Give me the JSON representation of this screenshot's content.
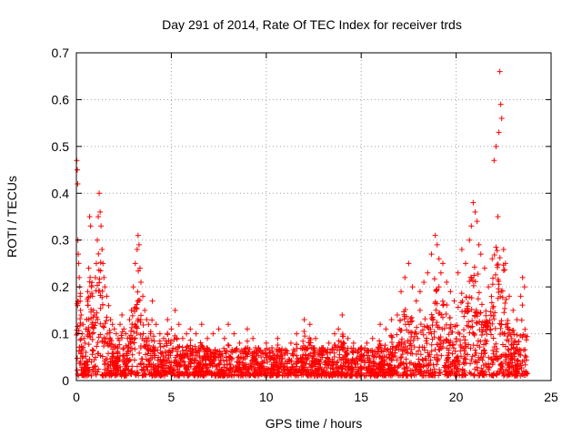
{
  "chart_data": {
    "type": "scatter",
    "title": "Day 291 of 2014, Rate Of TEC Index for receiver trds",
    "xlabel": "GPS time / hours",
    "ylabel": "ROTI / TECUs",
    "xlim": [
      0,
      25
    ],
    "ylim": [
      0,
      0.7
    ],
    "xticks": [
      0,
      5,
      10,
      15,
      20,
      25
    ],
    "yticks": [
      0,
      0.1,
      0.2,
      0.3,
      0.4,
      0.5,
      0.6,
      0.7
    ],
    "xtick_labels": [
      "0",
      "5",
      "10",
      "15",
      "20",
      "25"
    ],
    "ytick_labels": [
      "0",
      "0.1",
      "0.2",
      "0.3",
      "0.4",
      "0.5",
      "0.6",
      "0.7"
    ],
    "grid": true,
    "marker": "+",
    "color": "#ff0000",
    "series": [
      {
        "name": "ROTI",
        "x": [
          0.02,
          0.05,
          0.07,
          0.08,
          0.1,
          0.12,
          0.15,
          0.18,
          0.2,
          0.22,
          0.25,
          0.3,
          0.35,
          0.4,
          0.45,
          0.5,
          0.55,
          0.6,
          0.65,
          0.7,
          0.75,
          0.8,
          0.85,
          0.9,
          0.95,
          1.0,
          1.05,
          1.1,
          1.15,
          1.2,
          1.25,
          1.3,
          1.35,
          1.4,
          1.45,
          1.5,
          1.6,
          1.7,
          1.8,
          1.9,
          2.0,
          2.1,
          2.2,
          2.3,
          2.4,
          2.5,
          2.6,
          2.7,
          2.8,
          2.9,
          3.0,
          3.1,
          3.2,
          3.25,
          3.3,
          3.35,
          3.4,
          3.5,
          3.6,
          3.7,
          3.8,
          3.9,
          4.0,
          4.2,
          4.4,
          4.6,
          4.8,
          5.0,
          5.2,
          5.4,
          5.6,
          5.8,
          6.0,
          6.3,
          6.6,
          6.9,
          7.2,
          7.5,
          7.8,
          8.0,
          8.3,
          8.6,
          9.0,
          9.3,
          9.6,
          10.0,
          10.3,
          10.6,
          11.0,
          11.3,
          11.6,
          12.0,
          12.3,
          12.6,
          13.0,
          13.3,
          13.6,
          13.8,
          14.0,
          14.3,
          14.6,
          15.0,
          15.3,
          15.6,
          16.0,
          16.3,
          16.6,
          16.9,
          17.1,
          17.3,
          17.5,
          17.7,
          17.9,
          18.1,
          18.3,
          18.5,
          18.7,
          18.9,
          19.0,
          19.1,
          19.2,
          19.3,
          19.5,
          19.7,
          19.9,
          20.1,
          20.3,
          20.5,
          20.7,
          20.8,
          20.9,
          21.0,
          21.1,
          21.2,
          21.3,
          21.5,
          21.7,
          21.9,
          22.0,
          22.1,
          22.2,
          22.25,
          22.3,
          22.35,
          22.4,
          22.5,
          22.6,
          22.8,
          23.0,
          23.2,
          23.4,
          23.5,
          23.6
        ],
        "y": [
          0.47,
          0.45,
          0.42,
          0.3,
          0.27,
          0.25,
          0.22,
          0.2,
          0.18,
          0.15,
          0.14,
          0.1,
          0.12,
          0.09,
          0.08,
          0.11,
          0.13,
          0.19,
          0.24,
          0.35,
          0.33,
          0.2,
          0.18,
          0.15,
          0.14,
          0.22,
          0.25,
          0.3,
          0.35,
          0.4,
          0.36,
          0.33,
          0.28,
          0.25,
          0.22,
          0.2,
          0.18,
          0.16,
          0.13,
          0.12,
          0.11,
          0.1,
          0.09,
          0.12,
          0.14,
          0.11,
          0.1,
          0.09,
          0.13,
          0.15,
          0.2,
          0.25,
          0.28,
          0.31,
          0.29,
          0.24,
          0.21,
          0.18,
          0.15,
          0.13,
          0.12,
          0.1,
          0.17,
          0.12,
          0.1,
          0.09,
          0.13,
          0.11,
          0.15,
          0.12,
          0.09,
          0.1,
          0.11,
          0.1,
          0.12,
          0.09,
          0.1,
          0.11,
          0.09,
          0.12,
          0.1,
          0.08,
          0.11,
          0.09,
          0.07,
          0.08,
          0.07,
          0.09,
          0.06,
          0.08,
          0.1,
          0.13,
          0.12,
          0.09,
          0.07,
          0.08,
          0.1,
          0.11,
          0.14,
          0.09,
          0.08,
          0.07,
          0.08,
          0.09,
          0.12,
          0.11,
          0.13,
          0.14,
          0.19,
          0.22,
          0.25,
          0.2,
          0.17,
          0.19,
          0.21,
          0.23,
          0.27,
          0.31,
          0.29,
          0.26,
          0.23,
          0.25,
          0.21,
          0.19,
          0.17,
          0.23,
          0.28,
          0.25,
          0.3,
          0.33,
          0.38,
          0.36,
          0.34,
          0.29,
          0.27,
          0.24,
          0.2,
          0.26,
          0.47,
          0.5,
          0.35,
          0.53,
          0.66,
          0.59,
          0.56,
          0.28,
          0.25,
          0.18,
          0.15,
          0.13,
          0.18,
          0.22,
          0.2
        ]
      }
    ],
    "noise_floor": "dense band 0.01–0.10 across 0–23.8 h",
    "legend": "none"
  }
}
